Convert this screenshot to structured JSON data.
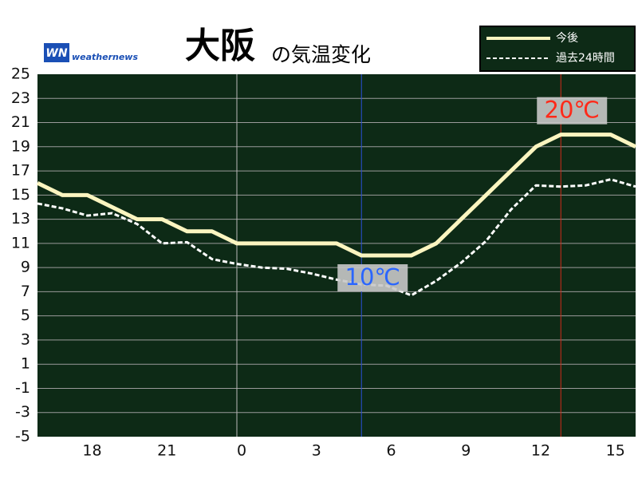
{
  "chart_data": {
    "type": "line",
    "title": "大阪",
    "subtitle": "の気温変化",
    "brand": "weathernews",
    "brand_logo": "WN",
    "categories": [
      null,
      null,
      "18",
      null,
      null,
      "21",
      null,
      null,
      "0",
      null,
      null,
      "3",
      null,
      null,
      "6",
      null,
      null,
      "9",
      null,
      null,
      "12",
      null,
      null,
      "15",
      null
    ],
    "series": [
      {
        "name": "今後",
        "color": "#fbf5c0",
        "dashed": false,
        "values": [
          16,
          15,
          15,
          14,
          13,
          13,
          12,
          12,
          11,
          11,
          11,
          11,
          11,
          10,
          10,
          10,
          11,
          13,
          15,
          17,
          19,
          20,
          20,
          20,
          19
        ]
      },
      {
        "name": "過去24時間",
        "color": "#ffffff",
        "dashed": true,
        "values": [
          14.3,
          13.9,
          13.3,
          13.5,
          12.6,
          11.0,
          11.1,
          9.7,
          9.3,
          9.0,
          8.9,
          8.5,
          8.0,
          7.6,
          7.5,
          6.7,
          7.9,
          9.4,
          11.2,
          13.8,
          15.8,
          15.7,
          15.8,
          16.3,
          15.7
        ]
      }
    ],
    "ylim": [
      -5,
      25
    ],
    "yticks": [
      -5,
      -3,
      -1,
      1,
      3,
      5,
      7,
      9,
      11,
      13,
      15,
      17,
      19,
      21,
      23,
      25
    ],
    "grid": true,
    "markers": [
      {
        "index": 8,
        "color": "#bbbbbb"
      },
      {
        "index": 13,
        "color": "#2a4fd8",
        "label": "10℃",
        "label_color": "#2a66ff"
      },
      {
        "index": 21,
        "color": "#d02a1a",
        "label": "20℃",
        "label_color": "#ff2a1a"
      }
    ],
    "legend": "top-right"
  }
}
